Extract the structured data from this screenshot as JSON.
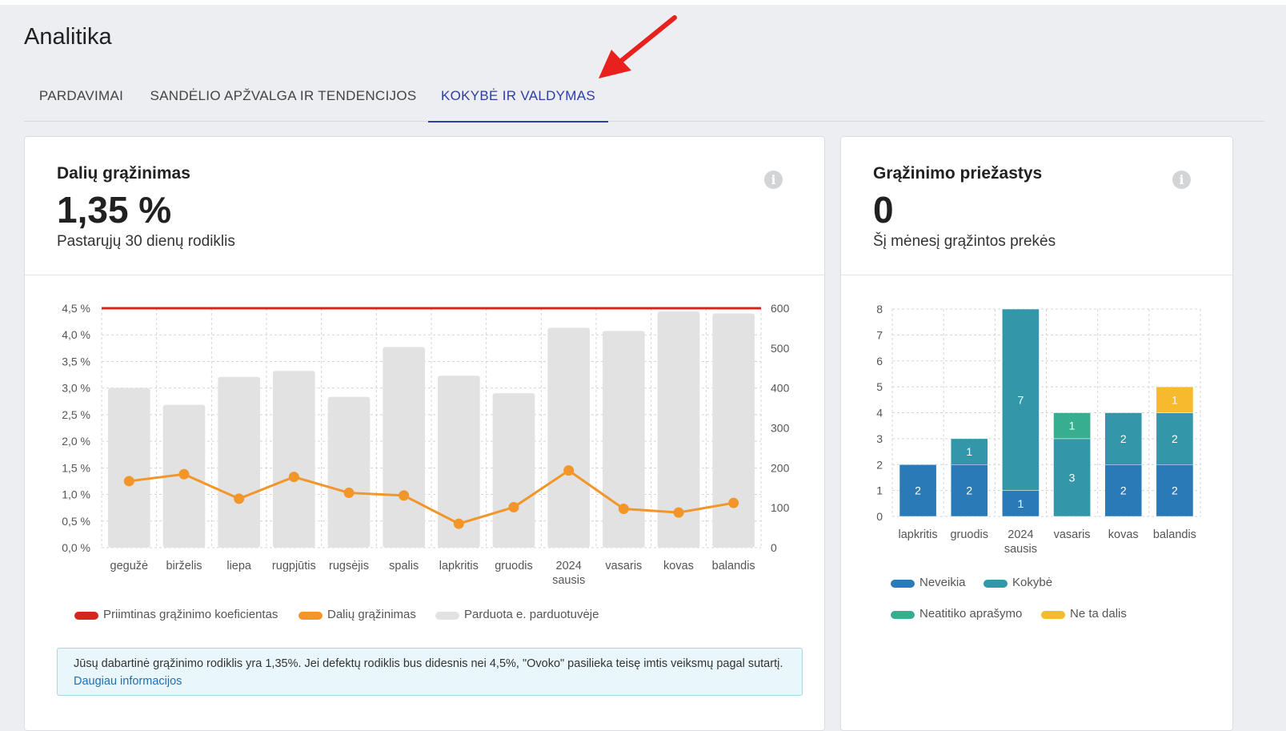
{
  "page": {
    "title": "Analitika",
    "tabs": [
      {
        "label": "PARDAVIMAI",
        "active": false
      },
      {
        "label": "SANDĖLIO APŽVALGA IR TENDENCIJOS",
        "active": false
      },
      {
        "label": "KOKYBĖ IR VALDYMAS",
        "active": true
      }
    ]
  },
  "returns_card": {
    "title": "Dalių grąžinimas",
    "value": "1,35 %",
    "subtitle": "Pastarųjų 30 dienų rodiklis",
    "info_icon": "info-icon",
    "notice_text": "Jūsų dabartinė grąžinimo rodiklis yra 1,35%. Jei defektų rodiklis bus didesnis nei 4,5%, \"Ovoko\" pasilieka teisę imtis veiksmų pagal sutartį.",
    "notice_link": "Daugiau informacijos"
  },
  "reasons_card": {
    "title": "Grąžinimo priežastys",
    "value": "0",
    "subtitle": "Šį mėnesį grąžintos prekės",
    "info_icon": "info-icon"
  },
  "chart_data": [
    {
      "type": "bar",
      "title": "",
      "categories": [
        "gegužė",
        "birželis",
        "liepa",
        "rugpjūtis",
        "rugsėjis",
        "spalis",
        "lapkritis",
        "gruodis",
        "2024 sausis",
        "vasaris",
        "kovas",
        "balandis"
      ],
      "y_left": {
        "ticks": [
          "0,0 %",
          "0,5 %",
          "1,0 %",
          "1,5 %",
          "2,0 %",
          "2,5 %",
          "3,0 %",
          "3,5 %",
          "4,0 %",
          "4,5 %"
        ],
        "range": [
          0,
          4.5
        ]
      },
      "y_right": {
        "ticks": [
          "0",
          "100",
          "200",
          "300",
          "400",
          "500",
          "600"
        ],
        "range": [
          0,
          600
        ]
      },
      "series": [
        {
          "name": "Parduota e. parduotuvėje",
          "kind": "bar",
          "axis": "right",
          "color": "#e2e2e2",
          "values": [
            400,
            358,
            428,
            443,
            378,
            503,
            431,
            387,
            551,
            543,
            592,
            587
          ]
        },
        {
          "name": "Dalių grąžinimas",
          "kind": "line",
          "axis": "left",
          "color": "#f2962a",
          "values": [
            1.25,
            1.38,
            0.92,
            1.33,
            1.03,
            0.98,
            0.45,
            0.76,
            1.45,
            0.73,
            0.66,
            0.84
          ]
        },
        {
          "name": "Priimtinas grąžinimo koeficientas",
          "kind": "line",
          "axis": "left",
          "color": "#d6241f",
          "values": [
            4.5,
            4.5,
            4.5,
            4.5,
            4.5,
            4.5,
            4.5,
            4.5,
            4.5,
            4.5,
            4.5,
            4.5
          ]
        }
      ],
      "legend": [
        "Priimtinas grąžinimo koeficientas",
        "Dalių grąžinimas",
        "Parduota e. parduotuvėje"
      ],
      "legend_position": "bottom",
      "grid": true
    },
    {
      "type": "bar",
      "stacked": true,
      "title": "",
      "categories": [
        "lapkritis",
        "gruodis",
        "2024 sausis",
        "vasaris",
        "kovas",
        "balandis"
      ],
      "y": {
        "ticks": [
          "0",
          "1",
          "2",
          "3",
          "4",
          "5",
          "6",
          "7",
          "8"
        ],
        "range": [
          0,
          8
        ]
      },
      "series": [
        {
          "name": "Neveikia",
          "color": "#2a7ab8",
          "values": [
            2,
            2,
            1,
            0,
            2,
            2
          ]
        },
        {
          "name": "Kokybė",
          "color": "#3397a9",
          "values": [
            0,
            1,
            7,
            3,
            2,
            2
          ]
        },
        {
          "name": "Neatitiko aprašymo",
          "color": "#37ae8d",
          "values": [
            0,
            0,
            0,
            1,
            0,
            0
          ]
        },
        {
          "name": "Ne ta dalis",
          "color": "#f7b92d",
          "values": [
            0,
            0,
            0,
            0,
            0,
            1
          ]
        }
      ],
      "legend": [
        "Neveikia",
        "Kokybė",
        "Neatitiko aprašymo",
        "Ne ta dalis"
      ],
      "legend_position": "bottom",
      "grid": true
    }
  ],
  "annotation": {
    "arrow_color": "#e8211e"
  }
}
